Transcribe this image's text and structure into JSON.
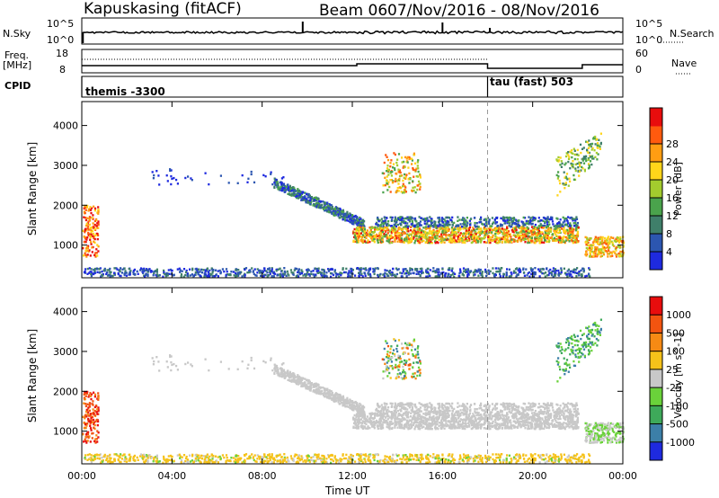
{
  "header": {
    "station": "Kapuskasing (fitACF)",
    "beam": "Beam 06",
    "date_range": "07/Nov/2016 - 08/Nov/2016"
  },
  "panels": {
    "nsky": {
      "left_label": "N.Sky",
      "left_ticks": [
        "10^5",
        "10^0"
      ],
      "right_ticks": [
        "10^5",
        "10^0"
      ],
      "right_label": "N.Search"
    },
    "freq": {
      "left_label": "Freq.",
      "left_unit": "[MHz]",
      "left_ticks": [
        "18",
        "8"
      ],
      "right_ticks": [
        "60",
        "0"
      ],
      "right_label": "Nave"
    },
    "cpid": {
      "label": "CPID",
      "segments": [
        {
          "text": "themis -3300",
          "hour": 0
        },
        {
          "text": "tau (fast) 503",
          "hour": 18
        }
      ]
    }
  },
  "chart_data": {
    "type": "heatmap",
    "x_label": "Time UT",
    "x_ticks": [
      "00:00",
      "04:00",
      "08:00",
      "12:00",
      "16:00",
      "20:00",
      "00:00"
    ],
    "x_range_hours": [
      0,
      24
    ],
    "y_label": "Slant Range [km]",
    "y_ticks": [
      1000,
      2000,
      3000,
      4000
    ],
    "y_range_km": [
      180,
      4600
    ],
    "power": {
      "colorbar_label": "Power [dB]",
      "scale_ticks": [
        "4",
        "8",
        "12",
        "16",
        "20",
        "24",
        "28"
      ],
      "colors": [
        "#1e2adf",
        "#2c56b0",
        "#3f7f6a",
        "#4aa34c",
        "#a3cc2e",
        "#ffd51a",
        "#ff9d12",
        "#ff5a0e",
        "#e80d0d"
      ]
    },
    "velocity": {
      "colorbar_label": "Velocity [m s^-1]",
      "scale_ticks": [
        "1000",
        "500",
        "100",
        "25",
        "-25",
        "-100",
        "-500",
        "-1000"
      ],
      "colors": [
        "#1e2adf",
        "#3c7fa8",
        "#3ea95a",
        "#6ad23a",
        "#c8c8c8",
        "#f6c21a",
        "#f68a14",
        "#f25410",
        "#e80d0d"
      ]
    }
  }
}
